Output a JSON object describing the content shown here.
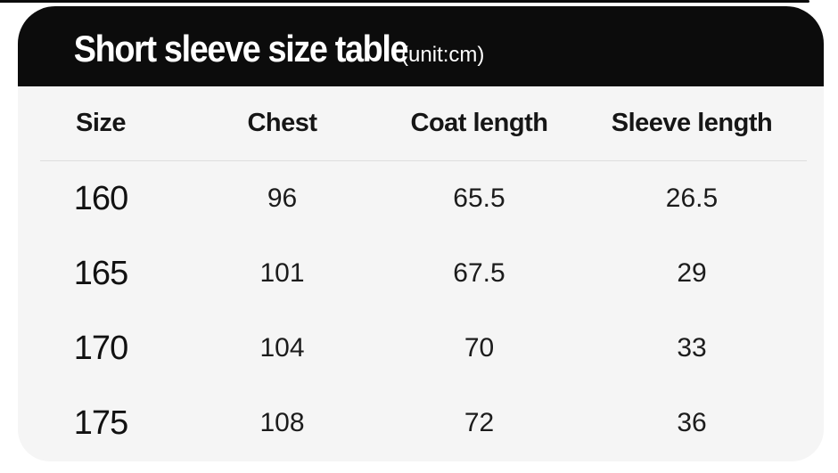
{
  "header": {
    "title": "Short sleeve size table",
    "unit": "(unit:cm)",
    "bg_color": "#0c0c0c",
    "text_color": "#ffffff"
  },
  "table": {
    "card_bg": "#f5f5f5",
    "divider_color": "#dedede",
    "text_color": "#1c1c1c",
    "columns": [
      "Size",
      "Chest",
      "Coat length",
      "Sleeve length"
    ],
    "rows": [
      [
        "160",
        "96",
        "65.5",
        "26.5"
      ],
      [
        "165",
        "101",
        "67.5",
        "29"
      ],
      [
        "170",
        "104",
        "70",
        "33"
      ],
      [
        "175",
        "108",
        "72",
        "36"
      ]
    ]
  },
  "chart_data": {
    "type": "table",
    "title": "Short sleeve size table",
    "subtitle": "(unit:cm)",
    "columns": [
      "Size",
      "Chest",
      "Coat length",
      "Sleeve length"
    ],
    "rows": [
      [
        160,
        96,
        65.5,
        26.5
      ],
      [
        165,
        101,
        67.5,
        29
      ],
      [
        170,
        104,
        70,
        33
      ],
      [
        175,
        108,
        72,
        36
      ]
    ]
  }
}
